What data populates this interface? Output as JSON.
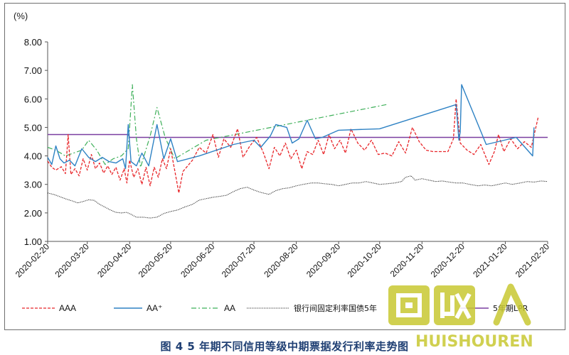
{
  "chart_data": {
    "type": "line",
    "title": "图 4  5 年期不同信用等级中期票据发行利率走势图",
    "y_unit": "(%)",
    "ylim": [
      1.0,
      8.0
    ],
    "y_ticks": [
      "1.00",
      "2.00",
      "3.00",
      "4.00",
      "5.00",
      "6.00",
      "7.00",
      "8.00"
    ],
    "x_range": [
      "2020-02-20",
      "2021-02-20"
    ],
    "x_ticks": [
      "2020-02-20",
      "2020-03-20",
      "2020-04-20",
      "2020-05-20",
      "2020-06-20",
      "2020-07-20",
      "2020-08-20",
      "2020-09-20",
      "2020-10-20",
      "2020-11-20",
      "2020-12-20",
      "2021-01-20",
      "2021-02-20"
    ],
    "grid": false,
    "legend_position": "bottom",
    "series": [
      {
        "name": "AAA",
        "color": "#e8262a",
        "style": "dashed",
        "points": [
          [
            "2020-02-20",
            3.82
          ],
          [
            "2020-02-23",
            3.6
          ],
          [
            "2020-02-26",
            3.5
          ],
          [
            "2020-03-01",
            3.62
          ],
          [
            "2020-03-04",
            3.38
          ],
          [
            "2020-03-06",
            4.75
          ],
          [
            "2020-03-08",
            3.35
          ],
          [
            "2020-03-11",
            3.55
          ],
          [
            "2020-03-14",
            3.3
          ],
          [
            "2020-03-17",
            3.9
          ],
          [
            "2020-03-20",
            3.5
          ],
          [
            "2020-03-23",
            4.05
          ],
          [
            "2020-03-26",
            3.55
          ],
          [
            "2020-03-29",
            3.75
          ],
          [
            "2020-04-01",
            3.4
          ],
          [
            "2020-04-04",
            3.65
          ],
          [
            "2020-04-07",
            3.35
          ],
          [
            "2020-04-10",
            3.6
          ],
          [
            "2020-04-13",
            3.15
          ],
          [
            "2020-04-16",
            3.55
          ],
          [
            "2020-04-18",
            3.05
          ],
          [
            "2020-04-20",
            3.85
          ],
          [
            "2020-04-23",
            3.25
          ],
          [
            "2020-04-26",
            3.55
          ],
          [
            "2020-04-29",
            3.0
          ],
          [
            "2020-05-02",
            3.6
          ],
          [
            "2020-05-05",
            2.95
          ],
          [
            "2020-05-08",
            3.6
          ],
          [
            "2020-05-11",
            3.25
          ],
          [
            "2020-05-14",
            3.9
          ],
          [
            "2020-05-17",
            3.55
          ],
          [
            "2020-05-20",
            4.25
          ],
          [
            "2020-05-23",
            3.5
          ],
          [
            "2020-05-26",
            2.7
          ],
          [
            "2020-05-29",
            3.45
          ],
          [
            "2020-06-05",
            3.85
          ],
          [
            "2020-06-10",
            4.3
          ],
          [
            "2020-06-15",
            4.1
          ],
          [
            "2020-06-20",
            4.75
          ],
          [
            "2020-06-24",
            3.95
          ],
          [
            "2020-06-28",
            4.6
          ],
          [
            "2020-07-03",
            4.3
          ],
          [
            "2020-07-08",
            4.95
          ],
          [
            "2020-07-12",
            3.95
          ],
          [
            "2020-07-17",
            4.35
          ],
          [
            "2020-07-22",
            4.65
          ],
          [
            "2020-07-27",
            4.1
          ],
          [
            "2020-07-31",
            3.55
          ],
          [
            "2020-08-04",
            4.3
          ],
          [
            "2020-08-08",
            4.0
          ],
          [
            "2020-08-12",
            4.45
          ],
          [
            "2020-08-16",
            3.9
          ],
          [
            "2020-08-20",
            4.2
          ],
          [
            "2020-08-24",
            3.55
          ],
          [
            "2020-08-28",
            4.15
          ],
          [
            "2020-09-01",
            4.05
          ],
          [
            "2020-09-05",
            4.55
          ],
          [
            "2020-09-09",
            4.05
          ],
          [
            "2020-09-13",
            4.75
          ],
          [
            "2020-09-17",
            4.25
          ],
          [
            "2020-09-21",
            4.55
          ],
          [
            "2020-09-25",
            4.1
          ],
          [
            "2020-09-29",
            4.95
          ],
          [
            "2020-10-04",
            4.45
          ],
          [
            "2020-10-09",
            4.2
          ],
          [
            "2020-10-14",
            4.55
          ],
          [
            "2020-10-19",
            4.05
          ],
          [
            "2020-10-24",
            4.1
          ],
          [
            "2020-10-29",
            4.0
          ],
          [
            "2020-11-03",
            4.5
          ],
          [
            "2020-11-08",
            4.1
          ],
          [
            "2020-11-13",
            5.0
          ],
          [
            "2020-11-18",
            4.5
          ],
          [
            "2020-11-23",
            4.2
          ],
          [
            "2020-11-28",
            4.15
          ],
          [
            "2020-12-03",
            4.15
          ],
          [
            "2020-12-09",
            4.15
          ],
          [
            "2020-12-13",
            4.6
          ],
          [
            "2020-12-15",
            6.0
          ],
          [
            "2020-12-18",
            4.45
          ],
          [
            "2020-12-23",
            4.2
          ],
          [
            "2020-12-28",
            4.05
          ],
          [
            "2021-01-02",
            4.4
          ],
          [
            "2021-01-08",
            3.7
          ],
          [
            "2021-01-12",
            4.15
          ],
          [
            "2021-01-15",
            4.75
          ],
          [
            "2021-01-19",
            4.15
          ],
          [
            "2021-01-24",
            4.6
          ],
          [
            "2021-01-29",
            4.25
          ],
          [
            "2021-02-03",
            4.5
          ],
          [
            "2021-02-08",
            4.3
          ],
          [
            "2021-02-13",
            5.35
          ]
        ]
      },
      {
        "name": "AA⁺",
        "color": "#2e82c4",
        "style": "solid",
        "points": [
          [
            "2020-02-20",
            3.95
          ],
          [
            "2020-02-23",
            3.7
          ],
          [
            "2020-02-26",
            4.35
          ],
          [
            "2020-02-29",
            3.9
          ],
          [
            "2020-03-03",
            3.75
          ],
          [
            "2020-03-07",
            3.85
          ],
          [
            "2020-03-11",
            3.65
          ],
          [
            "2020-03-16",
            4.25
          ],
          [
            "2020-03-21",
            3.95
          ],
          [
            "2020-03-26",
            3.8
          ],
          [
            "2020-03-31",
            3.95
          ],
          [
            "2020-04-05",
            3.8
          ],
          [
            "2020-04-10",
            3.75
          ],
          [
            "2020-04-15",
            3.9
          ],
          [
            "2020-04-17",
            3.55
          ],
          [
            "2020-04-19",
            5.1
          ],
          [
            "2020-04-21",
            3.8
          ],
          [
            "2020-04-25",
            3.65
          ],
          [
            "2020-04-29",
            4.1
          ],
          [
            "2020-05-04",
            3.65
          ],
          [
            "2020-05-10",
            5.1
          ],
          [
            "2020-05-15",
            3.9
          ],
          [
            "2020-05-20",
            4.6
          ],
          [
            "2020-05-25",
            3.8
          ],
          [
            "2020-06-10",
            4.0
          ],
          [
            "2020-07-05",
            4.4
          ],
          [
            "2020-07-20",
            4.55
          ],
          [
            "2020-07-25",
            4.3
          ],
          [
            "2020-08-01",
            4.7
          ],
          [
            "2020-08-05",
            5.1
          ],
          [
            "2020-08-13",
            5.0
          ],
          [
            "2020-08-17",
            4.45
          ],
          [
            "2020-08-22",
            4.6
          ],
          [
            "2020-08-28",
            5.25
          ],
          [
            "2020-09-03",
            4.6
          ],
          [
            "2020-09-08",
            4.65
          ],
          [
            "2020-09-20",
            4.9
          ],
          [
            "2020-10-20",
            4.95
          ],
          [
            "2020-12-15",
            5.8
          ],
          [
            "2020-12-17",
            4.55
          ],
          [
            "2020-12-18",
            4.85
          ],
          [
            "2020-12-19",
            6.5
          ],
          [
            "2021-01-06",
            4.4
          ],
          [
            "2021-01-28",
            4.65
          ],
          [
            "2021-02-09",
            4.0
          ],
          [
            "2021-02-10",
            5.0
          ]
        ]
      },
      {
        "name": "AA",
        "color": "#3fb05a",
        "style": "dashdot",
        "points": [
          [
            "2020-02-20",
            4.3
          ],
          [
            "2020-02-26",
            4.2
          ],
          [
            "2020-03-04",
            4.0
          ],
          [
            "2020-03-10",
            4.1
          ],
          [
            "2020-03-16",
            4.2
          ],
          [
            "2020-03-21",
            4.55
          ],
          [
            "2020-03-27",
            4.2
          ],
          [
            "2020-04-02",
            3.7
          ],
          [
            "2020-04-08",
            3.9
          ],
          [
            "2020-04-14",
            4.0
          ],
          [
            "2020-04-19",
            4.25
          ],
          [
            "2020-04-22",
            6.5
          ],
          [
            "2020-04-25",
            4.6
          ],
          [
            "2020-04-28",
            3.6
          ],
          [
            "2020-05-05",
            4.7
          ],
          [
            "2020-05-10",
            5.7
          ],
          [
            "2020-05-16",
            4.65
          ],
          [
            "2020-05-23",
            3.9
          ],
          [
            "2020-06-15",
            4.55
          ],
          [
            "2020-10-25",
            5.8
          ]
        ]
      },
      {
        "name": "银行间固定利率国债5年",
        "color": "#333333",
        "style": "dotted",
        "points": [
          [
            "2020-02-20",
            2.7
          ],
          [
            "2020-02-25",
            2.64
          ],
          [
            "2020-03-01",
            2.55
          ],
          [
            "2020-03-05",
            2.48
          ],
          [
            "2020-03-09",
            2.42
          ],
          [
            "2020-03-13",
            2.35
          ],
          [
            "2020-03-17",
            2.4
          ],
          [
            "2020-03-21",
            2.46
          ],
          [
            "2020-03-25",
            2.44
          ],
          [
            "2020-03-29",
            2.3
          ],
          [
            "2020-04-02",
            2.2
          ],
          [
            "2020-04-06",
            2.1
          ],
          [
            "2020-04-10",
            2.02
          ],
          [
            "2020-04-14",
            2.0
          ],
          [
            "2020-04-18",
            2.02
          ],
          [
            "2020-04-21",
            1.95
          ],
          [
            "2020-04-25",
            1.85
          ],
          [
            "2020-04-30",
            1.85
          ],
          [
            "2020-05-05",
            1.82
          ],
          [
            "2020-05-10",
            1.85
          ],
          [
            "2020-05-15",
            1.98
          ],
          [
            "2020-05-20",
            2.05
          ],
          [
            "2020-05-25",
            2.1
          ],
          [
            "2020-05-30",
            2.2
          ],
          [
            "2020-06-05",
            2.3
          ],
          [
            "2020-06-10",
            2.45
          ],
          [
            "2020-06-15",
            2.5
          ],
          [
            "2020-06-20",
            2.55
          ],
          [
            "2020-06-25",
            2.58
          ],
          [
            "2020-06-30",
            2.62
          ],
          [
            "2020-07-05",
            2.75
          ],
          [
            "2020-07-10",
            2.85
          ],
          [
            "2020-07-15",
            2.9
          ],
          [
            "2020-07-20",
            2.8
          ],
          [
            "2020-07-25",
            2.72
          ],
          [
            "2020-07-31",
            2.65
          ],
          [
            "2020-08-05",
            2.78
          ],
          [
            "2020-08-10",
            2.85
          ],
          [
            "2020-08-15",
            2.88
          ],
          [
            "2020-08-20",
            2.95
          ],
          [
            "2020-08-25",
            3.0
          ],
          [
            "2020-08-31",
            3.05
          ],
          [
            "2020-09-05",
            3.05
          ],
          [
            "2020-09-10",
            3.02
          ],
          [
            "2020-09-15",
            3.0
          ],
          [
            "2020-09-20",
            2.95
          ],
          [
            "2020-09-25",
            3.0
          ],
          [
            "2020-09-30",
            3.05
          ],
          [
            "2020-10-05",
            3.05
          ],
          [
            "2020-10-10",
            3.1
          ],
          [
            "2020-10-15",
            3.05
          ],
          [
            "2020-10-20",
            3.0
          ],
          [
            "2020-10-25",
            3.02
          ],
          [
            "2020-10-31",
            3.05
          ],
          [
            "2020-11-05",
            3.1
          ],
          [
            "2020-11-08",
            3.25
          ],
          [
            "2020-11-12",
            3.3
          ],
          [
            "2020-11-15",
            3.15
          ],
          [
            "2020-11-20",
            3.2
          ],
          [
            "2020-11-25",
            3.15
          ],
          [
            "2020-11-30",
            3.1
          ],
          [
            "2020-12-05",
            3.12
          ],
          [
            "2020-12-10",
            3.08
          ],
          [
            "2020-12-15",
            3.05
          ],
          [
            "2020-12-20",
            3.05
          ],
          [
            "2020-12-25",
            3.0
          ],
          [
            "2020-12-31",
            2.95
          ],
          [
            "2021-01-05",
            2.98
          ],
          [
            "2021-01-10",
            2.95
          ],
          [
            "2021-01-15",
            3.0
          ],
          [
            "2021-01-20",
            3.05
          ],
          [
            "2021-01-25",
            3.0
          ],
          [
            "2021-01-31",
            3.05
          ],
          [
            "2021-02-05",
            3.1
          ],
          [
            "2021-02-10",
            3.08
          ],
          [
            "2021-02-15",
            3.12
          ],
          [
            "2021-02-20",
            3.1
          ]
        ]
      },
      {
        "name": "5年期LPR",
        "color": "#7a3fa0",
        "style": "solid",
        "points": [
          [
            "2020-02-20",
            4.75
          ],
          [
            "2020-04-19",
            4.75
          ],
          [
            "2020-04-20",
            4.65
          ],
          [
            "2021-02-20",
            4.65
          ]
        ]
      }
    ]
  },
  "watermark": {
    "text": "HUISHOUREN",
    "glyphs": "回收人",
    "color": "#c8c832"
  }
}
